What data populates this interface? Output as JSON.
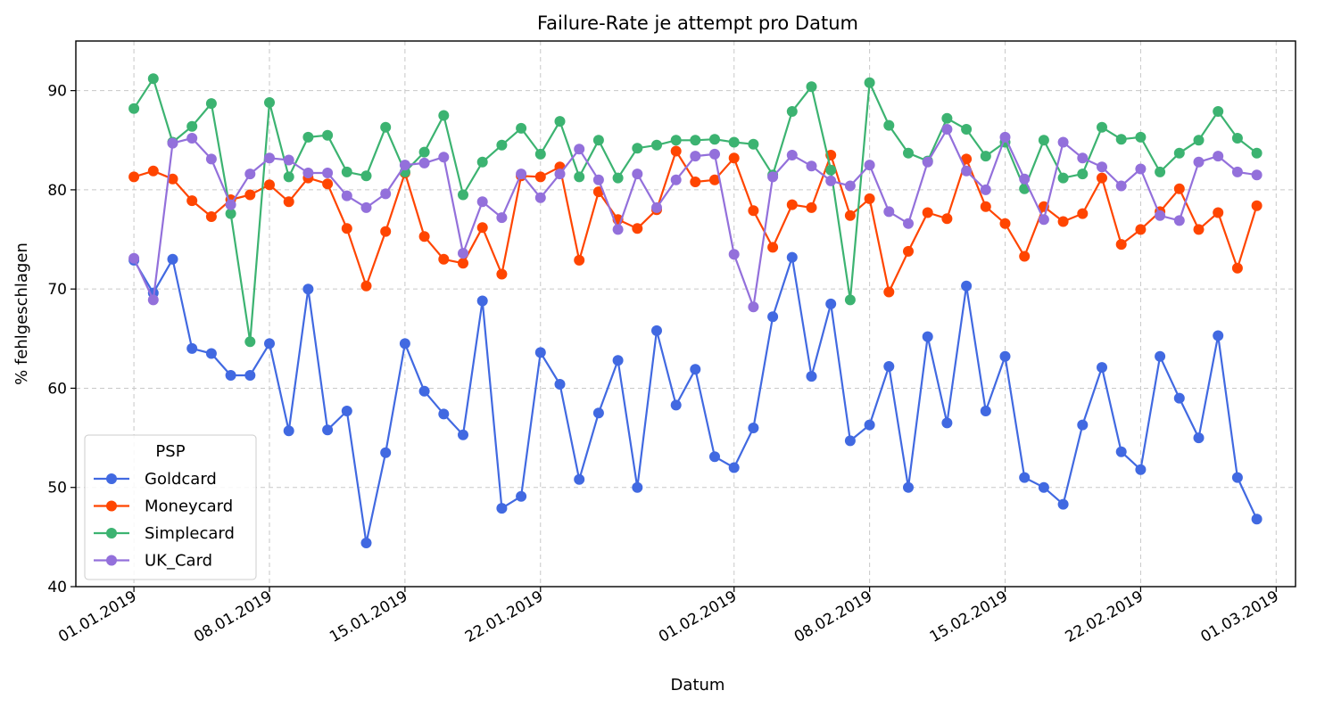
{
  "chart_data": {
    "type": "line",
    "title": "Failure-Rate je attempt pro Datum",
    "xlabel": "Datum",
    "ylabel": "% fehlgeschlagen",
    "ylim": [
      40,
      95
    ],
    "xlim": [
      "2018-12-29",
      "2019-03-02"
    ],
    "x_ticks": [
      "01.01.2019",
      "08.01.2019",
      "15.01.2019",
      "22.01.2019",
      "01.02.2019",
      "08.02.2019",
      "15.02.2019",
      "22.02.2019",
      "01.03.2019"
    ],
    "y_ticks": [
      40,
      50,
      60,
      70,
      80,
      90
    ],
    "grid": true,
    "legend": {
      "title": "PSP",
      "location": "lower-left"
    },
    "start_date": "2019-01-01",
    "series": [
      {
        "name": "Goldcard",
        "color": "#4169e1",
        "values": [
          72.9,
          69.6,
          73.0,
          64.0,
          63.5,
          61.3,
          61.3,
          64.5,
          55.7,
          70.0,
          55.8,
          57.7,
          44.4,
          53.5,
          64.5,
          59.7,
          57.4,
          55.3,
          68.8,
          47.9,
          49.1,
          63.6,
          60.4,
          50.8,
          57.5,
          62.8,
          50.0,
          65.8,
          58.3,
          61.9,
          53.1,
          52.0,
          56.0,
          67.2,
          73.2,
          61.2,
          68.5,
          54.7,
          56.3,
          62.2,
          50.0,
          65.2,
          56.5,
          70.3,
          57.7,
          63.2,
          51.0,
          50.0,
          48.3,
          56.3,
          62.1,
          53.6,
          51.8,
          63.2,
          59.0,
          55.0,
          65.3,
          51.0,
          46.8
        ]
      },
      {
        "name": "Moneycard",
        "color": "#ff4500",
        "values": [
          81.3,
          81.9,
          81.1,
          78.9,
          77.3,
          79.0,
          79.5,
          80.5,
          78.8,
          81.2,
          80.6,
          76.1,
          70.3,
          75.8,
          81.7,
          75.3,
          73.0,
          72.6,
          76.2,
          71.5,
          81.4,
          81.3,
          82.3,
          72.9,
          79.8,
          77.0,
          76.1,
          78.0,
          83.9,
          80.8,
          81.0,
          83.2,
          77.9,
          74.2,
          78.5,
          78.2,
          83.5,
          77.4,
          79.1,
          69.7,
          73.8,
          77.7,
          77.1,
          83.1,
          78.3,
          76.6,
          73.3,
          78.3,
          76.8,
          77.6,
          81.2,
          74.5,
          76.0,
          77.8,
          80.1,
          76.0,
          77.7,
          72.1,
          78.4
        ]
      },
      {
        "name": "Simplecard",
        "color": "#3cb371",
        "values": [
          88.2,
          91.2,
          84.8,
          86.4,
          88.7,
          77.6,
          64.7,
          88.8,
          81.3,
          85.3,
          85.5,
          81.8,
          81.4,
          86.3,
          81.8,
          83.8,
          87.5,
          79.5,
          82.8,
          84.5,
          86.2,
          83.6,
          86.9,
          81.3,
          85.0,
          81.2,
          84.2,
          84.5,
          85.0,
          85.0,
          85.1,
          84.8,
          84.6,
          81.5,
          87.9,
          90.4,
          82.0,
          68.9,
          90.8,
          86.5,
          83.7,
          82.9,
          87.2,
          86.1,
          83.4,
          84.8,
          80.1,
          85.0,
          81.2,
          81.6,
          86.3,
          85.1,
          85.3,
          81.8,
          83.7,
          85.0,
          87.9,
          85.2,
          83.7
        ]
      },
      {
        "name": "UK_Card",
        "color": "#9370db",
        "values": [
          73.1,
          68.9,
          84.7,
          85.2,
          83.1,
          78.5,
          81.6,
          83.2,
          83.0,
          81.7,
          81.7,
          79.4,
          78.2,
          79.6,
          82.5,
          82.7,
          83.3,
          73.6,
          78.8,
          77.2,
          81.6,
          79.2,
          81.6,
          84.1,
          81.0,
          76.0,
          81.6,
          78.2,
          81.0,
          83.4,
          83.6,
          73.5,
          68.2,
          81.3,
          83.5,
          82.4,
          80.9,
          80.4,
          82.5,
          77.8,
          76.6,
          82.8,
          86.1,
          81.9,
          80.0,
          85.3,
          81.1,
          77.0,
          84.8,
          83.2,
          82.3,
          80.4,
          82.1,
          77.4,
          76.9,
          82.8,
          83.4,
          81.8,
          81.5
        ]
      }
    ]
  }
}
